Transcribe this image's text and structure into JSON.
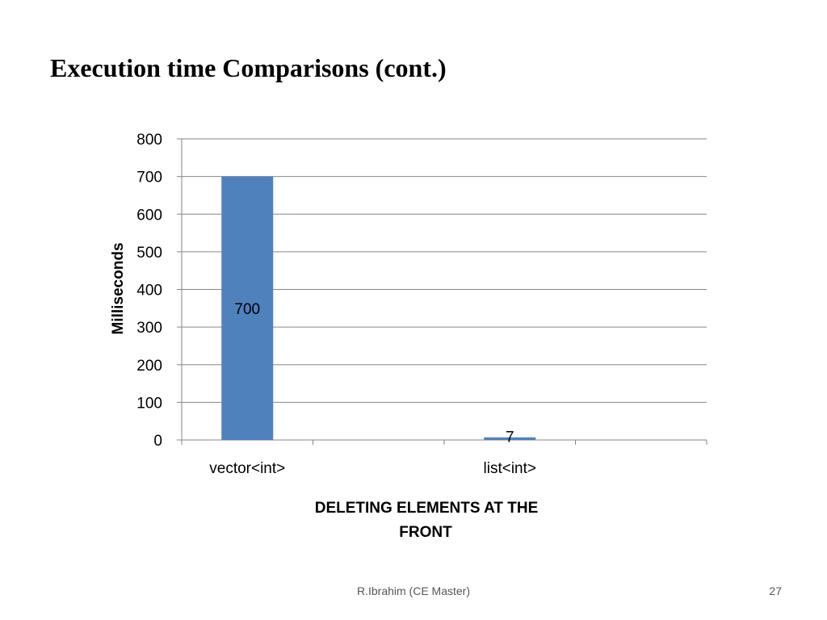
{
  "slide": {
    "title": "Execution time Comparisons (cont.)",
    "footer_author": "R.Ibrahim (CE Master)",
    "page_number": "27"
  },
  "colors": {
    "bar": "#4f81bd",
    "grid": "#868686",
    "axis": "#868686"
  },
  "chart_data": {
    "type": "bar",
    "categories": [
      "vector<int>",
      "list<int>"
    ],
    "values": [
      700,
      7
    ],
    "data_labels": [
      "700",
      "7"
    ],
    "xlabel": "DELETING ELEMENTS AT THE FRONT",
    "xlabel_lines": [
      "DELETING ELEMENTS AT THE",
      "FRONT"
    ],
    "ylabel": "Milliseconds",
    "ylim": [
      0,
      800
    ],
    "yticks": [
      0,
      100,
      200,
      300,
      400,
      500,
      600,
      700,
      800
    ],
    "grid": true,
    "legend": "none"
  }
}
